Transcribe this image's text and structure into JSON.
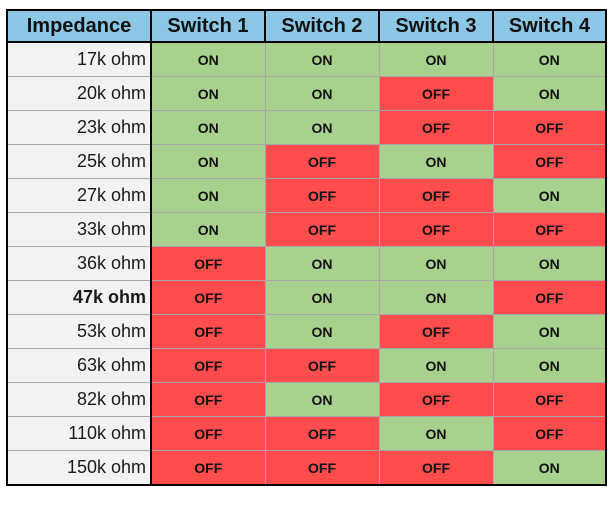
{
  "header": {
    "impedance": "Impedance",
    "switches": [
      "Switch 1",
      "Switch 2",
      "Switch 3",
      "Switch 4"
    ]
  },
  "colors": {
    "header_bg": "#8cc7e6",
    "on_bg": "#a9d18e",
    "off_bg": "#ff4d4d",
    "label_bg": "#f2f2f2"
  },
  "rows": [
    {
      "impedance": "17k ohm",
      "bold": false,
      "switches": [
        "ON",
        "ON",
        "ON",
        "ON"
      ]
    },
    {
      "impedance": "20k ohm",
      "bold": false,
      "switches": [
        "ON",
        "ON",
        "OFF",
        "ON"
      ]
    },
    {
      "impedance": "23k ohm",
      "bold": false,
      "switches": [
        "ON",
        "ON",
        "OFF",
        "OFF"
      ]
    },
    {
      "impedance": "25k ohm",
      "bold": false,
      "switches": [
        "ON",
        "OFF",
        "ON",
        "OFF"
      ]
    },
    {
      "impedance": "27k ohm",
      "bold": false,
      "switches": [
        "ON",
        "OFF",
        "OFF",
        "ON"
      ]
    },
    {
      "impedance": "33k ohm",
      "bold": false,
      "switches": [
        "ON",
        "OFF",
        "OFF",
        "OFF"
      ]
    },
    {
      "impedance": "36k ohm",
      "bold": false,
      "switches": [
        "OFF",
        "ON",
        "ON",
        "ON"
      ]
    },
    {
      "impedance": "47k ohm",
      "bold": true,
      "switches": [
        "OFF",
        "ON",
        "ON",
        "OFF"
      ]
    },
    {
      "impedance": "53k ohm",
      "bold": false,
      "switches": [
        "OFF",
        "ON",
        "OFF",
        "ON"
      ]
    },
    {
      "impedance": "63k ohm",
      "bold": false,
      "switches": [
        "OFF",
        "OFF",
        "ON",
        "ON"
      ]
    },
    {
      "impedance": "82k ohm",
      "bold": false,
      "switches": [
        "OFF",
        "ON",
        "OFF",
        "OFF"
      ]
    },
    {
      "impedance": "110k ohm",
      "bold": false,
      "switches": [
        "OFF",
        "OFF",
        "ON",
        "OFF"
      ]
    },
    {
      "impedance": "150k ohm",
      "bold": false,
      "switches": [
        "OFF",
        "OFF",
        "OFF",
        "ON"
      ]
    }
  ]
}
